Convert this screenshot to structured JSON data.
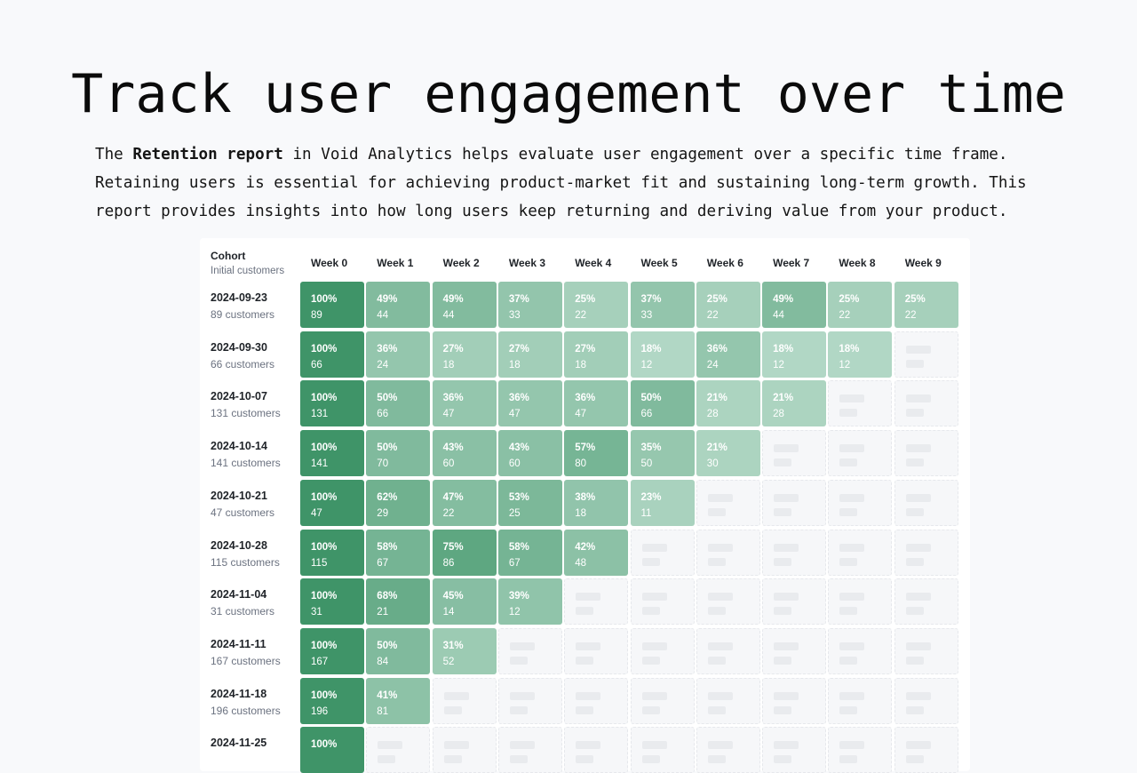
{
  "hero": {
    "title": "Track user engagement over time",
    "intro": {
      "line1_prefix": "The ",
      "line1_bold": "Retention report",
      "line1_rest": " in Void Analytics helps evaluate user engagement over a specific time frame.",
      "line2": "Retaining users is essential for achieving product-market fit and sustaining long-term growth. This",
      "line3": "report provides insights into how long users keep returning and deriving value from your product."
    }
  },
  "report": {
    "cohort_header": "Cohort",
    "cohort_subheader": "Initial customers",
    "weeks": [
      "Week 0",
      "Week 1",
      "Week 2",
      "Week 3",
      "Week 4",
      "Week 5",
      "Week 6",
      "Week 7",
      "Week 8",
      "Week 9"
    ],
    "colors": {
      "accent": "#3f9468",
      "empty": "#f6f7f9"
    },
    "rows": [
      {
        "date": "2024-09-23",
        "customers": "89 customers",
        "cells": [
          {
            "pct": "100%",
            "count": "89"
          },
          {
            "pct": "49%",
            "count": "44"
          },
          {
            "pct": "49%",
            "count": "44"
          },
          {
            "pct": "37%",
            "count": "33"
          },
          {
            "pct": "25%",
            "count": "22"
          },
          {
            "pct": "37%",
            "count": "33"
          },
          {
            "pct": "25%",
            "count": "22"
          },
          {
            "pct": "49%",
            "count": "44"
          },
          {
            "pct": "25%",
            "count": "22"
          },
          {
            "pct": "25%",
            "count": "22"
          }
        ]
      },
      {
        "date": "2024-09-30",
        "customers": "66 customers",
        "cells": [
          {
            "pct": "100%",
            "count": "66"
          },
          {
            "pct": "36%",
            "count": "24"
          },
          {
            "pct": "27%",
            "count": "18"
          },
          {
            "pct": "27%",
            "count": "18"
          },
          {
            "pct": "27%",
            "count": "18"
          },
          {
            "pct": "18%",
            "count": "12"
          },
          {
            "pct": "36%",
            "count": "24"
          },
          {
            "pct": "18%",
            "count": "12"
          },
          {
            "pct": "18%",
            "count": "12"
          },
          null
        ]
      },
      {
        "date": "2024-10-07",
        "customers": "131 customers",
        "cells": [
          {
            "pct": "100%",
            "count": "131"
          },
          {
            "pct": "50%",
            "count": "66"
          },
          {
            "pct": "36%",
            "count": "47"
          },
          {
            "pct": "36%",
            "count": "47"
          },
          {
            "pct": "36%",
            "count": "47"
          },
          {
            "pct": "50%",
            "count": "66"
          },
          {
            "pct": "21%",
            "count": "28"
          },
          {
            "pct": "21%",
            "count": "28"
          },
          null,
          null
        ]
      },
      {
        "date": "2024-10-14",
        "customers": "141 customers",
        "cells": [
          {
            "pct": "100%",
            "count": "141"
          },
          {
            "pct": "50%",
            "count": "70"
          },
          {
            "pct": "43%",
            "count": "60"
          },
          {
            "pct": "43%",
            "count": "60"
          },
          {
            "pct": "57%",
            "count": "80"
          },
          {
            "pct": "35%",
            "count": "50"
          },
          {
            "pct": "21%",
            "count": "30"
          },
          null,
          null,
          null
        ]
      },
      {
        "date": "2024-10-21",
        "customers": "47 customers",
        "cells": [
          {
            "pct": "100%",
            "count": "47"
          },
          {
            "pct": "62%",
            "count": "29"
          },
          {
            "pct": "47%",
            "count": "22"
          },
          {
            "pct": "53%",
            "count": "25"
          },
          {
            "pct": "38%",
            "count": "18"
          },
          {
            "pct": "23%",
            "count": "11"
          },
          null,
          null,
          null,
          null
        ]
      },
      {
        "date": "2024-10-28",
        "customers": "115 customers",
        "cells": [
          {
            "pct": "100%",
            "count": "115"
          },
          {
            "pct": "58%",
            "count": "67"
          },
          {
            "pct": "75%",
            "count": "86"
          },
          {
            "pct": "58%",
            "count": "67"
          },
          {
            "pct": "42%",
            "count": "48"
          },
          null,
          null,
          null,
          null,
          null
        ]
      },
      {
        "date": "2024-11-04",
        "customers": "31 customers",
        "cells": [
          {
            "pct": "100%",
            "count": "31"
          },
          {
            "pct": "68%",
            "count": "21"
          },
          {
            "pct": "45%",
            "count": "14"
          },
          {
            "pct": "39%",
            "count": "12"
          },
          null,
          null,
          null,
          null,
          null,
          null
        ]
      },
      {
        "date": "2024-11-11",
        "customers": "167 customers",
        "cells": [
          {
            "pct": "100%",
            "count": "167"
          },
          {
            "pct": "50%",
            "count": "84"
          },
          {
            "pct": "31%",
            "count": "52"
          },
          null,
          null,
          null,
          null,
          null,
          null,
          null
        ]
      },
      {
        "date": "2024-11-18",
        "customers": "196 customers",
        "cells": [
          {
            "pct": "100%",
            "count": "196"
          },
          {
            "pct": "41%",
            "count": "81"
          },
          null,
          null,
          null,
          null,
          null,
          null,
          null,
          null
        ]
      },
      {
        "date": "2024-11-25",
        "customers": "",
        "cells": [
          {
            "pct": "100%",
            "count": ""
          },
          null,
          null,
          null,
          null,
          null,
          null,
          null,
          null,
          null
        ]
      }
    ]
  }
}
